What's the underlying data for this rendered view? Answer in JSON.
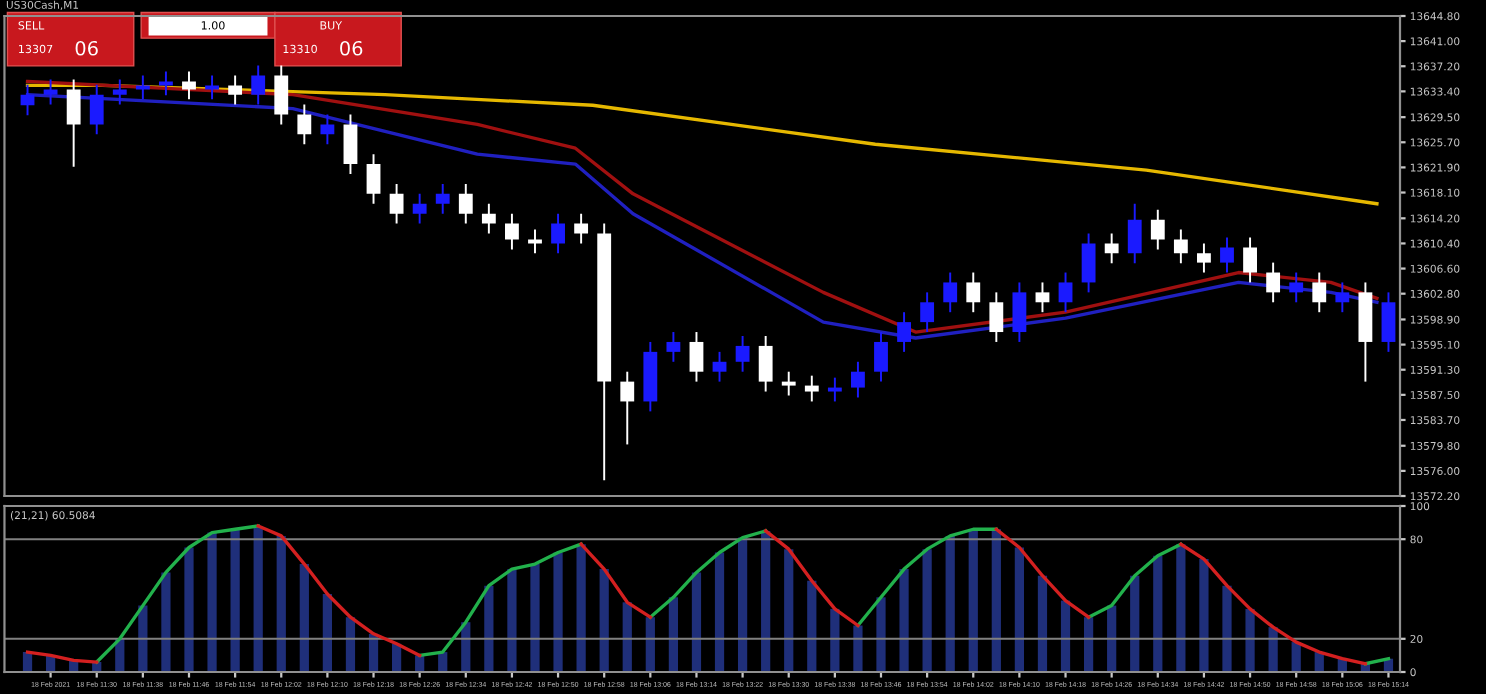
{
  "chart_data": [
    {
      "type": "candlestick",
      "title": "US30Cash,M1",
      "annotations": [
        "SELL",
        "1.00",
        "BUY",
        "13307",
        "06",
        "13310",
        "06"
      ],
      "colors": [
        "#1a1aff",
        "#1a1aff",
        "#ffffff",
        "#1a1aff",
        "#1a1aff",
        "#1a1aff",
        "#1a1aff",
        "#ffffff",
        "#1a1aff",
        "#ffffff",
        "#1a1aff",
        "#ffffff",
        "#ffffff",
        "#1a1aff",
        "#ffffff",
        "#ffffff",
        "#ffffff",
        "#1a1aff",
        "#1a1aff",
        "#ffffff",
        "#ffffff",
        "#ffffff",
        "#ffffff",
        "#1a1aff",
        "#ffffff",
        "#ffffff",
        "#ffffff",
        "#1a1aff",
        "#1a1aff",
        "#ffffff",
        "#1a1aff",
        "#1a1aff",
        "#ffffff",
        "#ffffff",
        "#ffffff",
        "#1a1aff",
        "#1a1aff",
        "#1a1aff",
        "#1a1aff",
        "#1a1aff",
        "#1a1aff",
        "#ffffff",
        "#ffffff",
        "#1a1aff",
        "#ffffff",
        "#1a1aff",
        "#1a1aff",
        "#ffffff",
        "#1a1aff",
        "#ffffff",
        "#ffffff",
        "#ffffff",
        "#1a1aff",
        "#ffffff",
        "#ffffff",
        "#1a1aff",
        "#ffffff",
        "#1a1aff",
        "#ffffff",
        "#1a1aff"
      ],
      "x": [
        "2021-02-18T11:18",
        "2021-02-18T11:22",
        "2021-02-18T11:26",
        "2021-02-18T11:30",
        "2021-02-18T11:34",
        "2021-02-18T11:38",
        "2021-02-18T11:42",
        "2021-02-18T11:46",
        "2021-02-18T11:50",
        "2021-02-18T11:54",
        "2021-02-18T11:58",
        "2021-02-18T12:02",
        "2021-02-18T12:06",
        "2021-02-18T12:10",
        "2021-02-18T12:14",
        "2021-02-18T12:18",
        "2021-02-18T12:22",
        "2021-02-18T12:26",
        "2021-02-18T12:30",
        "2021-02-18T12:34",
        "2021-02-18T12:38",
        "2021-02-18T12:42",
        "2021-02-18T12:46",
        "2021-02-18T12:50",
        "2021-02-18T12:54",
        "2021-02-18T12:58",
        "2021-02-18T13:02",
        "2021-02-18T13:06",
        "2021-02-18T13:10",
        "2021-02-18T13:14",
        "2021-02-18T13:18",
        "2021-02-18T13:22",
        "2021-02-18T13:26",
        "2021-02-18T13:30",
        "2021-02-18T13:34",
        "2021-02-18T13:38",
        "2021-02-18T13:42",
        "2021-02-18T13:46",
        "2021-02-18T13:50",
        "2021-02-18T13:54",
        "2021-02-18T13:58",
        "2021-02-18T14:02",
        "2021-02-18T14:06",
        "2021-02-18T14:10",
        "2021-02-18T14:14",
        "2021-02-18T14:18",
        "2021-02-18T14:22",
        "2021-02-18T14:26",
        "2021-02-18T14:30",
        "2021-02-18T14:34",
        "2021-02-18T14:38",
        "2021-02-18T14:42",
        "2021-02-18T14:46",
        "2021-02-18T14:50",
        "2021-02-18T14:54",
        "2021-02-18T14:58",
        "2021-02-18T15:02",
        "2021-02-18T15:06",
        "2021-02-18T15:10",
        "2021-02-18T15:14"
      ],
      "ohlc": [
        [
          13631.3,
          13634.4,
          13629.8,
          13632.9
        ],
        [
          13632.9,
          13635.2,
          13631.4,
          13633.7
        ],
        [
          13633.7,
          13635.2,
          13622.0,
          13628.4
        ],
        [
          13628.4,
          13634.4,
          13626.9,
          13632.9
        ],
        [
          13632.9,
          13635.2,
          13631.4,
          13633.7
        ],
        [
          13633.7,
          13635.8,
          13632.2,
          13634.3
        ],
        [
          13634.3,
          13636.4,
          13632.8,
          13634.9
        ],
        [
          13634.9,
          13636.4,
          13632.2,
          13633.7
        ],
        [
          13633.7,
          13635.8,
          13632.2,
          13634.3
        ],
        [
          13634.3,
          13635.8,
          13631.4,
          13632.9
        ],
        [
          13632.9,
          13637.3,
          13631.4,
          13635.8
        ],
        [
          13635.8,
          13637.3,
          13628.4,
          13629.9
        ],
        [
          13629.9,
          13631.4,
          13625.4,
          13626.9
        ],
        [
          13626.9,
          13629.9,
          13625.4,
          13628.4
        ],
        [
          13628.4,
          13629.9,
          13620.9,
          13622.4
        ],
        [
          13622.4,
          13623.9,
          13616.4,
          13617.9
        ],
        [
          13617.9,
          13619.4,
          13613.4,
          13614.9
        ],
        [
          13614.9,
          13617.9,
          13613.4,
          13616.4
        ],
        [
          13616.4,
          13619.4,
          13614.9,
          13617.9
        ],
        [
          13617.9,
          13619.4,
          13613.4,
          13614.9
        ],
        [
          13614.9,
          13616.4,
          13611.9,
          13613.4
        ],
        [
          13613.4,
          13614.9,
          13609.5,
          13611.0
        ],
        [
          13611.0,
          13612.5,
          13608.9,
          13610.4
        ],
        [
          13610.4,
          13614.9,
          13608.9,
          13613.4
        ],
        [
          13613.4,
          13614.9,
          13610.4,
          13611.9
        ],
        [
          13611.9,
          13613.4,
          13574.6,
          13589.5
        ],
        [
          13589.5,
          13591.0,
          13580.0,
          13586.5
        ],
        [
          13586.5,
          13595.5,
          13585.0,
          13594.0
        ],
        [
          13594.0,
          13597.0,
          13592.5,
          13595.5
        ],
        [
          13595.5,
          13597.0,
          13589.5,
          13591.0
        ],
        [
          13591.0,
          13594.0,
          13589.5,
          13592.5
        ],
        [
          13592.5,
          13596.4,
          13591.0,
          13594.9
        ],
        [
          13594.9,
          13596.4,
          13588.0,
          13589.5
        ],
        [
          13589.5,
          13591.0,
          13587.4,
          13588.9
        ],
        [
          13588.9,
          13590.4,
          13586.5,
          13588.0
        ],
        [
          13588.0,
          13590.1,
          13586.5,
          13588.6
        ],
        [
          13588.6,
          13592.5,
          13587.1,
          13591.0
        ],
        [
          13591.0,
          13597.0,
          13589.5,
          13595.5
        ],
        [
          13595.5,
          13600.0,
          13594.0,
          13598.5
        ],
        [
          13598.5,
          13603.0,
          13597.0,
          13601.5
        ],
        [
          13601.5,
          13606.0,
          13600.0,
          13604.5
        ],
        [
          13604.5,
          13606.0,
          13600.0,
          13601.5
        ],
        [
          13601.5,
          13603.0,
          13595.5,
          13597.0
        ],
        [
          13597.0,
          13604.5,
          13595.5,
          13603.0
        ],
        [
          13603.0,
          13604.5,
          13600.0,
          13601.5
        ],
        [
          13601.5,
          13606.0,
          13600.0,
          13604.5
        ],
        [
          13604.5,
          13611.9,
          13603.0,
          13610.4
        ],
        [
          13610.4,
          13611.9,
          13607.4,
          13608.9
        ],
        [
          13608.9,
          13616.4,
          13607.4,
          13614.0
        ],
        [
          13614.0,
          13615.5,
          13609.5,
          13611.0
        ],
        [
          13611.0,
          13612.5,
          13607.4,
          13608.9
        ],
        [
          13608.9,
          13610.4,
          13606.0,
          13607.5
        ],
        [
          13607.5,
          13611.3,
          13606.0,
          13609.8
        ],
        [
          13609.8,
          13611.3,
          13604.5,
          13606.0
        ],
        [
          13606.0,
          13607.5,
          13601.5,
          13603.0
        ],
        [
          13603.0,
          13606.0,
          13601.5,
          13604.5
        ],
        [
          13604.5,
          13606.0,
          13600.0,
          13601.5
        ],
        [
          13601.5,
          13604.5,
          13600.0,
          13603.0
        ],
        [
          13603.0,
          13604.5,
          13589.5,
          13595.5
        ],
        [
          13595.5,
          13603.0,
          13594.0,
          13601.5
        ]
      ],
      "series": [
        {
          "type": "line",
          "color": "#e6b800",
          "x": [
            "2021-02-18T11:18",
            "2021-02-18T11:31",
            "2021-02-18T12:20",
            "2021-02-18T12:56",
            "2021-02-18T13:45",
            "2021-02-18T14:32",
            "2021-02-18T15:12"
          ],
          "values": [
            13634.3,
            13634.3,
            13632.9,
            13631.3,
            13625.4,
            13621.5,
            13616.4
          ]
        },
        {
          "type": "line",
          "color": "#a01010",
          "x": [
            "2021-02-18T11:18",
            "2021-02-18T12:04",
            "2021-02-18T12:36",
            "2021-02-18T12:53",
            "2021-02-18T13:03",
            "2021-02-18T13:36",
            "2021-02-18T13:52",
            "2021-02-18T14:18",
            "2021-02-18T14:48",
            "2021-02-18T15:04",
            "2021-02-18T15:12"
          ],
          "values": [
            13634.9,
            13632.9,
            13628.4,
            13624.8,
            13617.9,
            13603.0,
            13597.0,
            13600.0,
            13606.0,
            13604.5,
            13602.1
          ]
        },
        {
          "type": "line",
          "color": "#2020c0",
          "x": [
            "2021-02-18T11:18",
            "2021-02-18T12:04",
            "2021-02-18T12:36",
            "2021-02-18T12:53",
            "2021-02-18T13:03",
            "2021-02-18T13:36",
            "2021-02-18T13:52",
            "2021-02-18T14:18",
            "2021-02-18T14:48",
            "2021-02-18T15:04",
            "2021-02-18T15:12"
          ],
          "values": [
            13632.9,
            13630.8,
            13623.9,
            13622.4,
            13614.9,
            13598.5,
            13596.1,
            13599.1,
            13604.5,
            13603.0,
            13601.5
          ]
        }
      ],
      "xlim": [
        "2021-02-18T11:14",
        "2021-02-18T15:16"
      ],
      "ylim": [
        13572.2,
        13644.8
      ],
      "yticks": [
        {
          "value": 13644.8,
          "label": "13644.80"
        },
        {
          "value": 13641.0,
          "label": "13641.00"
        },
        {
          "value": 13637.2,
          "label": "13637.20"
        },
        {
          "value": 13633.4,
          "label": "13633.40"
        },
        {
          "value": 13629.5,
          "label": "13629.50"
        },
        {
          "value": 13625.7,
          "label": "13625.70"
        },
        {
          "value": 13621.9,
          "label": "13621.90"
        },
        {
          "value": 13618.1,
          "label": "13618.10"
        },
        {
          "value": 13614.2,
          "label": "13614.20"
        },
        {
          "value": 13610.4,
          "label": "13610.40"
        },
        {
          "value": 13606.6,
          "label": "13606.60"
        },
        {
          "value": 13602.8,
          "label": "13602.80"
        },
        {
          "value": 13598.9,
          "label": "13598.90"
        },
        {
          "value": 13595.1,
          "label": "13595.10"
        },
        {
          "value": 13591.3,
          "label": "13591.30"
        },
        {
          "value": 13587.5,
          "label": "13587.50"
        },
        {
          "value": 13583.7,
          "label": "13583.70"
        },
        {
          "value": 13579.8,
          "label": "13579.80"
        },
        {
          "value": 13576.0,
          "label": "13576.00"
        },
        {
          "value": 13572.2,
          "label": "13572.20"
        }
      ],
      "tick_labels": "y"
    },
    {
      "type": "bar",
      "subtitle": "(21,21) 60.5084",
      "x": [
        "2021-02-18T11:18",
        "2021-02-18T11:22",
        "2021-02-18T11:26",
        "2021-02-18T11:30",
        "2021-02-18T11:34",
        "2021-02-18T11:38",
        "2021-02-18T11:42",
        "2021-02-18T11:46",
        "2021-02-18T11:50",
        "2021-02-18T11:54",
        "2021-02-18T11:58",
        "2021-02-18T12:02",
        "2021-02-18T12:06",
        "2021-02-18T12:10",
        "2021-02-18T12:14",
        "2021-02-18T12:18",
        "2021-02-18T12:22",
        "2021-02-18T12:26",
        "2021-02-18T12:30",
        "2021-02-18T12:34",
        "2021-02-18T12:38",
        "2021-02-18T12:42",
        "2021-02-18T12:46",
        "2021-02-18T12:50",
        "2021-02-18T12:54",
        "2021-02-18T12:58",
        "2021-02-18T13:02",
        "2021-02-18T13:06",
        "2021-02-18T13:10",
        "2021-02-18T13:14",
        "2021-02-18T13:18",
        "2021-02-18T13:22",
        "2021-02-18T13:26",
        "2021-02-18T13:30",
        "2021-02-18T13:34",
        "2021-02-18T13:38",
        "2021-02-18T13:42",
        "2021-02-18T13:46",
        "2021-02-18T13:50",
        "2021-02-18T13:54",
        "2021-02-18T13:58",
        "2021-02-18T14:02",
        "2021-02-18T14:06",
        "2021-02-18T14:10",
        "2021-02-18T14:14",
        "2021-02-18T14:18",
        "2021-02-18T14:22",
        "2021-02-18T14:26",
        "2021-02-18T14:30",
        "2021-02-18T14:34",
        "2021-02-18T14:38",
        "2021-02-18T14:42",
        "2021-02-18T14:46",
        "2021-02-18T14:50",
        "2021-02-18T14:54",
        "2021-02-18T14:58",
        "2021-02-18T15:02",
        "2021-02-18T15:06",
        "2021-02-18T15:10",
        "2021-02-18T15:14"
      ],
      "series": [
        {
          "type": "bar",
          "color": "#1f2f7a",
          "values": [
            12,
            10,
            7,
            6,
            20,
            40,
            60,
            75,
            84,
            86,
            88,
            82,
            65,
            47,
            33,
            23,
            17,
            10,
            12,
            30,
            52,
            62,
            65,
            72,
            77,
            62,
            42,
            33,
            45,
            60,
            72,
            81,
            85,
            74,
            55,
            38,
            28,
            45,
            62,
            74,
            82,
            86,
            86,
            75,
            58,
            43,
            33,
            40,
            58,
            70,
            77,
            68,
            52,
            38,
            27,
            18,
            12,
            8,
            5,
            8
          ]
        },
        {
          "type": "line",
          "color": "#22b14c",
          "values": [
            null,
            null,
            null,
            6,
            20,
            40,
            60,
            75,
            84,
            86,
            88,
            null,
            null,
            null,
            null,
            null,
            null,
            10,
            12,
            30,
            52,
            62,
            65,
            72,
            77,
            null,
            null,
            33,
            45,
            60,
            72,
            81,
            85,
            null,
            null,
            null,
            28,
            45,
            62,
            74,
            82,
            86,
            86,
            null,
            null,
            null,
            33,
            40,
            58,
            70,
            77,
            null,
            null,
            null,
            null,
            null,
            null,
            null,
            5,
            8
          ]
        },
        {
          "type": "line",
          "color": "#d42020",
          "values": [
            12,
            10,
            7,
            6,
            null,
            null,
            null,
            null,
            null,
            null,
            88,
            82,
            65,
            47,
            33,
            23,
            17,
            10,
            null,
            null,
            null,
            null,
            null,
            null,
            77,
            62,
            42,
            33,
            null,
            null,
            null,
            null,
            85,
            74,
            55,
            38,
            28,
            null,
            null,
            null,
            null,
            null,
            86,
            75,
            58,
            43,
            33,
            null,
            null,
            null,
            77,
            68,
            52,
            38,
            27,
            18,
            12,
            8,
            5,
            null
          ]
        }
      ],
      "ref_lines": [
        {
          "axis": "y",
          "value": 80,
          "color": "#808080"
        },
        {
          "axis": "y",
          "value": 20,
          "color": "#808080"
        }
      ],
      "xlim": [
        "2021-02-18T11:14",
        "2021-02-18T15:16"
      ],
      "ylim": [
        0,
        100
      ],
      "yticks": [
        0,
        20,
        80,
        100
      ],
      "xticks": [
        {
          "value": "2021-02-18T11:22",
          "label": "18 Feb 2021"
        },
        {
          "value": "2021-02-18T11:30",
          "label": "18 Feb 11:30"
        },
        {
          "value": "2021-02-18T11:38",
          "label": "18 Feb 11:38"
        },
        {
          "value": "2021-02-18T11:46",
          "label": "18 Feb 11:46"
        },
        {
          "value": "2021-02-18T11:54",
          "label": "18 Feb 11:54"
        },
        {
          "value": "2021-02-18T12:02",
          "label": "18 Feb 12:02"
        },
        {
          "value": "2021-02-18T12:10",
          "label": "18 Feb 12:10"
        },
        {
          "value": "2021-02-18T12:18",
          "label": "18 Feb 12:18"
        },
        {
          "value": "2021-02-18T12:26",
          "label": "18 Feb 12:26"
        },
        {
          "value": "2021-02-18T12:34",
          "label": "18 Feb 12:34"
        },
        {
          "value": "2021-02-18T12:42",
          "label": "18 Feb 12:42"
        },
        {
          "value": "2021-02-18T12:50",
          "label": "18 Feb 12:50"
        },
        {
          "value": "2021-02-18T12:58",
          "label": "18 Feb 12:58"
        },
        {
          "value": "2021-02-18T13:06",
          "label": "18 Feb 13:06"
        },
        {
          "value": "2021-02-18T13:14",
          "label": "18 Feb 13:14"
        },
        {
          "value": "2021-02-18T13:22",
          "label": "18 Feb 13:22"
        },
        {
          "value": "2021-02-18T13:30",
          "label": "18 Feb 13:30"
        },
        {
          "value": "2021-02-18T13:38",
          "label": "18 Feb 13:38"
        },
        {
          "value": "2021-02-18T13:46",
          "label": "18 Feb 13:46"
        },
        {
          "value": "2021-02-18T13:54",
          "label": "18 Feb 13:54"
        },
        {
          "value": "2021-02-18T14:02",
          "label": "18 Feb 14:02"
        },
        {
          "value": "2021-02-18T14:10",
          "label": "18 Feb 14:10"
        },
        {
          "value": "2021-02-18T14:18",
          "label": "18 Feb 14:18"
        },
        {
          "value": "2021-02-18T14:26",
          "label": "18 Feb 14:26"
        },
        {
          "value": "2021-02-18T14:34",
          "label": "18 Feb 14:34"
        },
        {
          "value": "2021-02-18T14:42",
          "label": "18 Feb 14:42"
        },
        {
          "value": "2021-02-18T14:50",
          "label": "18 Feb 14:50"
        },
        {
          "value": "2021-02-18T14:58",
          "label": "18 Feb 14:58"
        },
        {
          "value": "2021-02-18T15:06",
          "label": "18 Feb 15:06"
        },
        {
          "value": "2021-02-18T15:14",
          "label": "18 Feb 15:14"
        }
      ]
    }
  ]
}
